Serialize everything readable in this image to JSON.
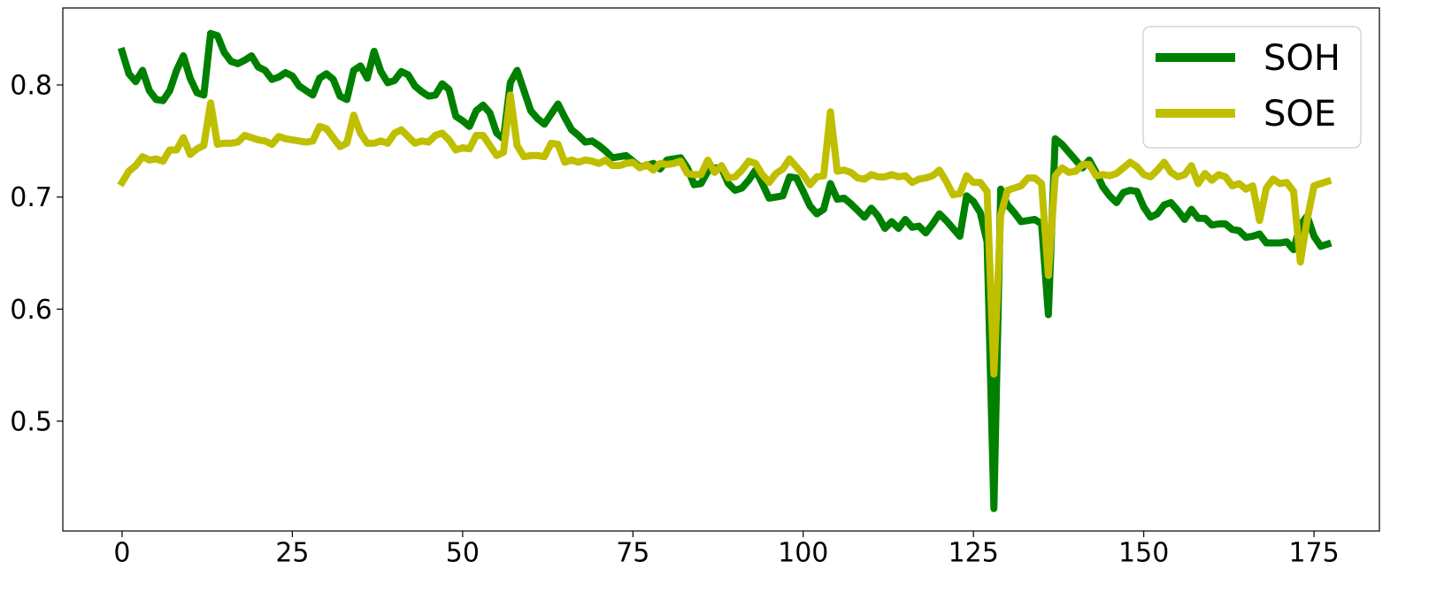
{
  "chart_data": {
    "type": "line",
    "x": [
      0,
      1,
      2,
      3,
      4,
      5,
      6,
      7,
      8,
      9,
      10,
      11,
      12,
      13,
      14,
      15,
      16,
      17,
      18,
      19,
      20,
      21,
      22,
      23,
      24,
      25,
      26,
      27,
      28,
      29,
      30,
      31,
      32,
      33,
      34,
      35,
      36,
      37,
      38,
      39,
      40,
      41,
      42,
      43,
      44,
      45,
      46,
      47,
      48,
      49,
      50,
      51,
      52,
      53,
      54,
      55,
      56,
      57,
      58,
      59,
      60,
      61,
      62,
      63,
      64,
      65,
      66,
      67,
      68,
      69,
      70,
      71,
      72,
      73,
      74,
      75,
      76,
      77,
      78,
      79,
      80,
      81,
      82,
      83,
      84,
      85,
      86,
      87,
      88,
      89,
      90,
      91,
      92,
      93,
      94,
      95,
      96,
      97,
      98,
      99,
      100,
      101,
      102,
      103,
      104,
      105,
      106,
      107,
      108,
      109,
      110,
      111,
      112,
      113,
      114,
      115,
      116,
      117,
      118,
      119,
      120,
      121,
      122,
      123,
      124,
      125,
      126,
      127,
      128,
      129,
      130,
      131,
      132,
      133,
      134,
      135,
      136,
      137,
      138,
      139,
      140,
      141,
      142,
      143,
      144,
      145,
      146,
      147,
      148,
      149,
      150,
      151,
      152,
      153,
      154,
      155,
      156,
      157,
      158,
      159,
      160,
      161,
      162,
      163,
      164,
      165,
      166,
      167,
      168,
      169,
      170,
      171,
      172,
      173,
      174,
      175,
      176,
      177
    ],
    "series": [
      {
        "name": "SOH",
        "color": "#008000",
        "values": [
          0.83,
          0.81,
          0.803,
          0.813,
          0.795,
          0.787,
          0.786,
          0.795,
          0.813,
          0.826,
          0.806,
          0.793,
          0.791,
          0.846,
          0.844,
          0.829,
          0.821,
          0.819,
          0.822,
          0.826,
          0.816,
          0.813,
          0.805,
          0.807,
          0.811,
          0.808,
          0.799,
          0.795,
          0.791,
          0.806,
          0.81,
          0.805,
          0.79,
          0.787,
          0.813,
          0.817,
          0.806,
          0.83,
          0.812,
          0.802,
          0.804,
          0.812,
          0.809,
          0.799,
          0.794,
          0.79,
          0.791,
          0.801,
          0.796,
          0.772,
          0.768,
          0.763,
          0.777,
          0.782,
          0.775,
          0.757,
          0.752,
          0.802,
          0.813,
          0.795,
          0.777,
          0.77,
          0.765,
          0.774,
          0.783,
          0.771,
          0.76,
          0.755,
          0.749,
          0.75,
          0.746,
          0.741,
          0.735,
          0.736,
          0.737,
          0.732,
          0.727,
          0.728,
          0.73,
          0.725,
          0.733,
          0.734,
          0.735,
          0.726,
          0.711,
          0.712,
          0.723,
          0.726,
          0.726,
          0.712,
          0.706,
          0.708,
          0.715,
          0.724,
          0.712,
          0.699,
          0.7,
          0.701,
          0.718,
          0.717,
          0.705,
          0.692,
          0.685,
          0.689,
          0.712,
          0.698,
          0.699,
          0.694,
          0.688,
          0.682,
          0.69,
          0.683,
          0.672,
          0.678,
          0.672,
          0.68,
          0.673,
          0.674,
          0.668,
          0.676,
          0.685,
          0.679,
          0.672,
          0.665,
          0.701,
          0.696,
          0.686,
          0.66,
          0.422,
          0.707,
          0.693,
          0.686,
          0.678,
          0.679,
          0.68,
          0.676,
          0.595,
          0.752,
          0.747,
          0.74,
          0.733,
          0.726,
          0.733,
          0.722,
          0.709,
          0.701,
          0.695,
          0.704,
          0.706,
          0.705,
          0.691,
          0.682,
          0.685,
          0.693,
          0.695,
          0.688,
          0.68,
          0.689,
          0.681,
          0.681,
          0.675,
          0.676,
          0.676,
          0.671,
          0.67,
          0.664,
          0.665,
          0.667,
          0.659,
          0.659,
          0.659,
          0.66,
          0.653,
          0.675,
          0.683,
          0.665,
          0.656,
          0.658
        ]
      },
      {
        "name": "SOE",
        "color": "#bfbf00",
        "values": [
          0.713,
          0.723,
          0.728,
          0.736,
          0.733,
          0.734,
          0.732,
          0.742,
          0.742,
          0.753,
          0.738,
          0.743,
          0.746,
          0.784,
          0.747,
          0.748,
          0.748,
          0.749,
          0.755,
          0.753,
          0.751,
          0.75,
          0.747,
          0.754,
          0.752,
          0.751,
          0.75,
          0.749,
          0.75,
          0.763,
          0.761,
          0.753,
          0.745,
          0.748,
          0.773,
          0.757,
          0.748,
          0.748,
          0.75,
          0.748,
          0.757,
          0.76,
          0.754,
          0.748,
          0.75,
          0.749,
          0.755,
          0.757,
          0.751,
          0.742,
          0.744,
          0.743,
          0.755,
          0.755,
          0.746,
          0.737,
          0.74,
          0.791,
          0.746,
          0.736,
          0.737,
          0.737,
          0.736,
          0.748,
          0.747,
          0.731,
          0.733,
          0.731,
          0.733,
          0.732,
          0.73,
          0.733,
          0.728,
          0.728,
          0.73,
          0.731,
          0.726,
          0.729,
          0.724,
          0.73,
          0.729,
          0.73,
          0.732,
          0.721,
          0.72,
          0.72,
          0.733,
          0.722,
          0.728,
          0.717,
          0.718,
          0.724,
          0.732,
          0.73,
          0.72,
          0.713,
          0.721,
          0.725,
          0.734,
          0.727,
          0.72,
          0.711,
          0.718,
          0.719,
          0.776,
          0.723,
          0.724,
          0.722,
          0.717,
          0.716,
          0.72,
          0.718,
          0.718,
          0.72,
          0.718,
          0.719,
          0.713,
          0.716,
          0.717,
          0.719,
          0.724,
          0.714,
          0.702,
          0.703,
          0.719,
          0.713,
          0.713,
          0.705,
          0.542,
          0.684,
          0.706,
          0.708,
          0.71,
          0.717,
          0.717,
          0.712,
          0.63,
          0.719,
          0.726,
          0.722,
          0.723,
          0.729,
          0.729,
          0.719,
          0.72,
          0.719,
          0.721,
          0.726,
          0.731,
          0.727,
          0.72,
          0.718,
          0.724,
          0.731,
          0.722,
          0.718,
          0.72,
          0.728,
          0.712,
          0.721,
          0.715,
          0.72,
          0.718,
          0.71,
          0.712,
          0.707,
          0.71,
          0.679,
          0.708,
          0.716,
          0.712,
          0.713,
          0.705,
          0.642,
          0.68,
          0.71,
          0.712,
          0.714
        ]
      }
    ],
    "xlim": [
      -8.7,
      184.6
    ],
    "xticks": [
      0,
      25,
      50,
      75,
      100,
      125,
      150,
      175
    ],
    "ylim": [
      0.402,
      0.8687
    ],
    "yticks": [
      0.5,
      0.6,
      0.7,
      0.8
    ],
    "legend": "upper right"
  }
}
